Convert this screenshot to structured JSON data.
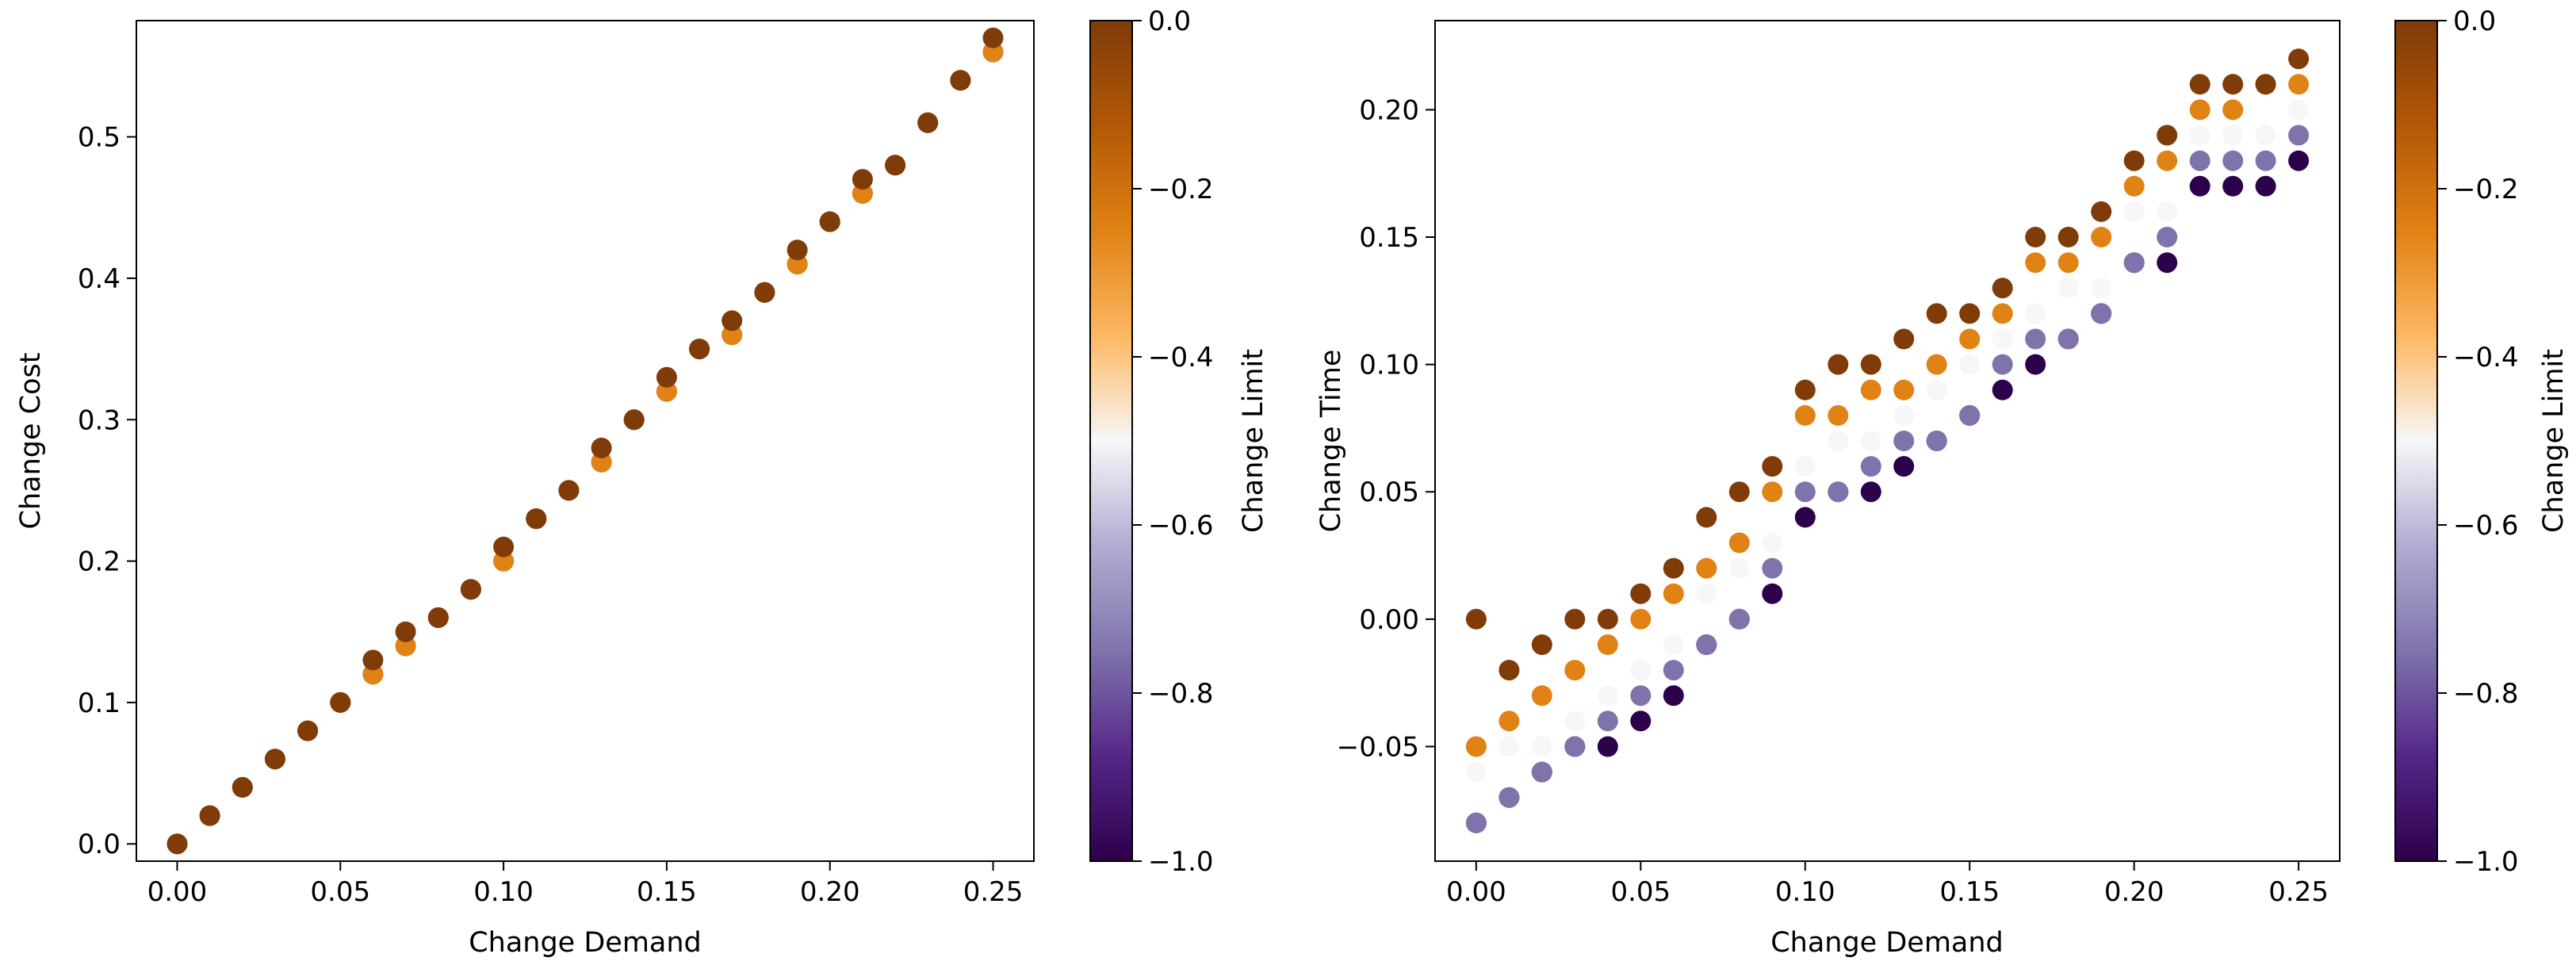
{
  "colormap": {
    "name": "PuOr",
    "stops": [
      {
        "t": 0.0,
        "color": "#2d004b"
      },
      {
        "t": 0.125,
        "color": "#542788"
      },
      {
        "t": 0.25,
        "color": "#8073ac"
      },
      {
        "t": 0.375,
        "color": "#b2abd2"
      },
      {
        "t": 0.5,
        "color": "#f7f7f7"
      },
      {
        "t": 0.625,
        "color": "#fdb863"
      },
      {
        "t": 0.75,
        "color": "#e08214"
      },
      {
        "t": 0.875,
        "color": "#b35806"
      },
      {
        "t": 1.0,
        "color": "#7f3b08"
      }
    ]
  },
  "chart_data": [
    {
      "type": "scatter",
      "title": "",
      "xlabel": "Change Demand",
      "ylabel": "Change Cost",
      "xlim": [
        -0.0125,
        0.2625
      ],
      "ylim": [
        -0.0122,
        0.5822
      ],
      "xticks": [
        0.0,
        0.05,
        0.1,
        0.15,
        0.2,
        0.25
      ],
      "xtick_labels": [
        "0.00",
        "0.05",
        "0.10",
        "0.15",
        "0.20",
        "0.25"
      ],
      "yticks": [
        0.0,
        0.1,
        0.2,
        0.3,
        0.4,
        0.5
      ],
      "ytick_labels": [
        "0.0",
        "0.1",
        "0.2",
        "0.3",
        "0.4",
        "0.5"
      ],
      "colorbar": {
        "label": "Change Limit",
        "range": [
          -1.0,
          0.0
        ],
        "ticks": [
          0.0,
          -0.2,
          -0.4,
          -0.6,
          -0.8,
          -1.0
        ],
        "tick_labels": [
          "0.0",
          "−0.2",
          "−0.4",
          "−0.6",
          "−0.8",
          "−1.0"
        ]
      },
      "series": [
        {
          "name": "Change Limit = -1.0",
          "c": -1.0,
          "x": [
            0.0,
            0.01,
            0.02,
            0.03,
            0.04,
            0.05,
            0.06,
            0.07,
            0.08,
            0.09,
            0.1,
            0.11,
            0.12,
            0.13,
            0.14,
            0.15,
            0.16,
            0.17,
            0.18,
            0.19,
            0.2,
            0.21,
            0.22,
            0.23,
            0.24,
            0.25
          ],
          "y": [
            0.0,
            0.02,
            0.04,
            0.06,
            0.08,
            0.1,
            0.12,
            0.14,
            0.16,
            0.18,
            0.2,
            0.23,
            0.25,
            0.27,
            0.3,
            0.32,
            0.35,
            0.36,
            0.39,
            0.41,
            0.44,
            0.46,
            0.48,
            0.51,
            0.54,
            0.56
          ]
        },
        {
          "name": "Change Limit = -0.75",
          "c": -0.75,
          "x": [
            0.0,
            0.01,
            0.02,
            0.03,
            0.04,
            0.05,
            0.06,
            0.07,
            0.08,
            0.09,
            0.1,
            0.11,
            0.12,
            0.13,
            0.14,
            0.15,
            0.16,
            0.17,
            0.18,
            0.19,
            0.2,
            0.21,
            0.22,
            0.23,
            0.24,
            0.25
          ],
          "y": [
            0.0,
            0.02,
            0.04,
            0.06,
            0.08,
            0.1,
            0.12,
            0.14,
            0.16,
            0.18,
            0.2,
            0.23,
            0.25,
            0.27,
            0.3,
            0.32,
            0.35,
            0.36,
            0.39,
            0.41,
            0.44,
            0.46,
            0.48,
            0.51,
            0.54,
            0.56
          ]
        },
        {
          "name": "Change Limit = -0.5",
          "c": -0.5,
          "x": [
            0.0,
            0.01,
            0.02,
            0.03,
            0.04,
            0.05,
            0.06,
            0.07,
            0.08,
            0.09,
            0.1,
            0.11,
            0.12,
            0.13,
            0.14,
            0.15,
            0.16,
            0.17,
            0.18,
            0.19,
            0.2,
            0.21,
            0.22,
            0.23,
            0.24,
            0.25
          ],
          "y": [
            0.0,
            0.02,
            0.04,
            0.06,
            0.08,
            0.1,
            0.12,
            0.14,
            0.16,
            0.18,
            0.2,
            0.23,
            0.25,
            0.27,
            0.3,
            0.32,
            0.35,
            0.36,
            0.39,
            0.41,
            0.44,
            0.46,
            0.48,
            0.51,
            0.54,
            0.56
          ]
        },
        {
          "name": "Change Limit = -0.25",
          "c": -0.25,
          "x": [
            0.0,
            0.01,
            0.02,
            0.03,
            0.04,
            0.05,
            0.06,
            0.07,
            0.08,
            0.09,
            0.1,
            0.11,
            0.12,
            0.13,
            0.14,
            0.15,
            0.16,
            0.17,
            0.18,
            0.19,
            0.2,
            0.21,
            0.22,
            0.23,
            0.24,
            0.25
          ],
          "y": [
            0.0,
            0.02,
            0.04,
            0.06,
            0.08,
            0.1,
            0.12,
            0.14,
            0.16,
            0.18,
            0.2,
            0.23,
            0.25,
            0.27,
            0.3,
            0.32,
            0.35,
            0.36,
            0.39,
            0.41,
            0.44,
            0.46,
            0.48,
            0.51,
            0.54,
            0.56
          ]
        },
        {
          "name": "Change Limit = 0.0",
          "c": 0.0,
          "x": [
            0.0,
            0.01,
            0.02,
            0.03,
            0.04,
            0.05,
            0.06,
            0.07,
            0.08,
            0.09,
            0.1,
            0.11,
            0.12,
            0.13,
            0.14,
            0.15,
            0.16,
            0.17,
            0.18,
            0.19,
            0.2,
            0.21,
            0.22,
            0.23,
            0.24,
            0.25
          ],
          "y": [
            0.0,
            0.02,
            0.04,
            0.06,
            0.08,
            0.1,
            0.13,
            0.15,
            0.16,
            0.18,
            0.21,
            0.23,
            0.25,
            0.28,
            0.3,
            0.33,
            0.35,
            0.37,
            0.39,
            0.42,
            0.44,
            0.47,
            0.48,
            0.51,
            0.54,
            0.57
          ]
        }
      ]
    },
    {
      "type": "scatter",
      "title": "",
      "xlabel": "Change Demand",
      "ylabel": "Change Time",
      "xlim": [
        -0.0125,
        0.2625
      ],
      "ylim": [
        -0.095,
        0.235
      ],
      "xticks": [
        0.0,
        0.05,
        0.1,
        0.15,
        0.2,
        0.25
      ],
      "xtick_labels": [
        "0.00",
        "0.05",
        "0.10",
        "0.15",
        "0.20",
        "0.25"
      ],
      "yticks": [
        -0.05,
        0.0,
        0.05,
        0.1,
        0.15,
        0.2
      ],
      "ytick_labels": [
        "−0.05",
        "0.00",
        "0.05",
        "0.10",
        "0.15",
        "0.20"
      ],
      "colorbar": {
        "label": "Change Limit",
        "range": [
          -1.0,
          0.0
        ],
        "ticks": [
          0.0,
          -0.2,
          -0.4,
          -0.6,
          -0.8,
          -1.0
        ],
        "tick_labels": [
          "0.0",
          "−0.2",
          "−0.4",
          "−0.6",
          "−0.8",
          "−1.0"
        ]
      },
      "series": [
        {
          "name": "Change Limit = -1.0",
          "c": -1.0,
          "x": [
            0.0,
            0.01,
            0.02,
            0.03,
            0.04,
            0.05,
            0.06,
            0.07,
            0.08,
            0.09,
            0.1,
            0.11,
            0.12,
            0.13,
            0.14,
            0.15,
            0.16,
            0.17,
            0.18,
            0.19,
            0.2,
            0.21,
            0.22,
            0.23,
            0.24,
            0.25
          ],
          "y": [
            -0.08,
            -0.07,
            -0.06,
            -0.05,
            -0.05,
            -0.04,
            -0.03,
            -0.01,
            0.0,
            0.01,
            0.04,
            0.05,
            0.05,
            0.06,
            0.07,
            0.08,
            0.09,
            0.1,
            0.11,
            0.12,
            0.14,
            0.14,
            0.17,
            0.17,
            0.17,
            0.18
          ]
        },
        {
          "name": "Change Limit = -0.75",
          "c": -0.75,
          "x": [
            0.0,
            0.01,
            0.02,
            0.03,
            0.04,
            0.05,
            0.06,
            0.07,
            0.08,
            0.09,
            0.1,
            0.11,
            0.12,
            0.13,
            0.14,
            0.15,
            0.16,
            0.17,
            0.18,
            0.19,
            0.2,
            0.21,
            0.22,
            0.23,
            0.24,
            0.25
          ],
          "y": [
            -0.08,
            -0.07,
            -0.06,
            -0.05,
            -0.04,
            -0.03,
            -0.02,
            -0.01,
            0.0,
            0.02,
            0.05,
            0.05,
            0.06,
            0.07,
            0.07,
            0.08,
            0.1,
            0.11,
            0.11,
            0.12,
            0.14,
            0.15,
            0.18,
            0.18,
            0.18,
            0.19
          ]
        },
        {
          "name": "Change Limit = -0.5",
          "c": -0.5,
          "x": [
            0.0,
            0.01,
            0.02,
            0.03,
            0.04,
            0.05,
            0.06,
            0.07,
            0.08,
            0.09,
            0.1,
            0.11,
            0.12,
            0.13,
            0.14,
            0.15,
            0.16,
            0.17,
            0.18,
            0.19,
            0.2,
            0.21,
            0.22,
            0.23,
            0.24,
            0.25
          ],
          "y": [
            -0.06,
            -0.05,
            -0.05,
            -0.04,
            -0.03,
            -0.02,
            -0.01,
            0.01,
            0.02,
            0.03,
            0.06,
            0.07,
            0.07,
            0.08,
            0.09,
            0.1,
            0.11,
            0.12,
            0.13,
            0.13,
            0.16,
            0.16,
            0.19,
            0.19,
            0.19,
            0.2
          ]
        },
        {
          "name": "Change Limit = -0.25",
          "c": -0.25,
          "x": [
            0.0,
            0.01,
            0.02,
            0.03,
            0.04,
            0.05,
            0.06,
            0.07,
            0.08,
            0.09,
            0.1,
            0.11,
            0.12,
            0.13,
            0.14,
            0.15,
            0.16,
            0.17,
            0.18,
            0.19,
            0.2,
            0.21,
            0.22,
            0.23,
            0.24,
            0.25
          ],
          "y": [
            -0.05,
            -0.04,
            -0.03,
            -0.02,
            -0.01,
            0.0,
            0.01,
            0.02,
            0.03,
            0.05,
            0.08,
            0.08,
            0.09,
            0.09,
            0.1,
            0.11,
            0.12,
            0.14,
            0.14,
            0.15,
            0.17,
            0.18,
            0.2,
            0.2,
            0.21,
            0.21
          ]
        },
        {
          "name": "Change Limit = 0.0",
          "c": 0.0,
          "x": [
            0.0,
            0.01,
            0.02,
            0.03,
            0.04,
            0.05,
            0.06,
            0.07,
            0.08,
            0.09,
            0.1,
            0.11,
            0.12,
            0.13,
            0.14,
            0.15,
            0.16,
            0.17,
            0.18,
            0.19,
            0.2,
            0.21,
            0.22,
            0.23,
            0.24,
            0.25
          ],
          "y": [
            0.0,
            -0.02,
            -0.01,
            0.0,
            0.0,
            0.01,
            0.02,
            0.04,
            0.05,
            0.06,
            0.09,
            0.1,
            0.1,
            0.11,
            0.12,
            0.12,
            0.13,
            0.15,
            0.15,
            0.16,
            0.18,
            0.19,
            0.21,
            0.21,
            0.21,
            0.22
          ]
        }
      ]
    }
  ]
}
